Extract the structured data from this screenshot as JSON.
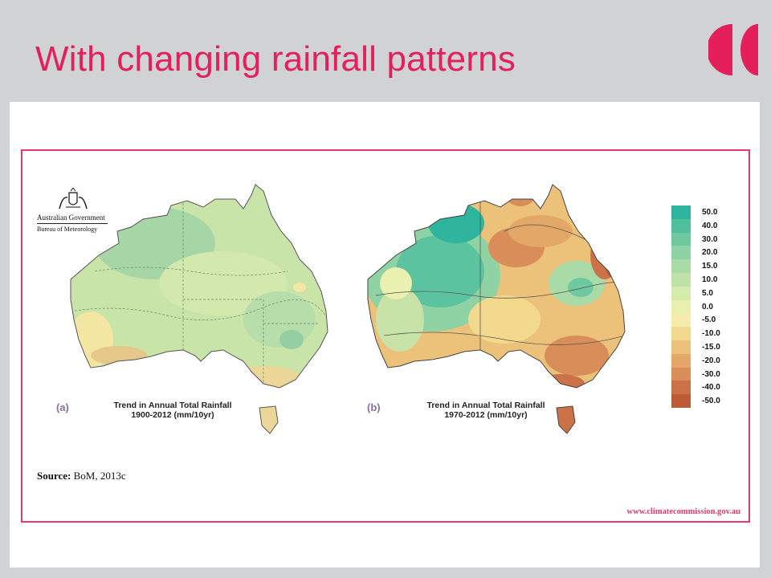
{
  "slide": {
    "title": "With changing rainfall patterns"
  },
  "figure": {
    "government": {
      "line1": "Australian Government",
      "line2": "Bureau of Meteorology"
    },
    "panel_a": {
      "letter": "(a)",
      "caption_line1": "Trend in Annual Total Rainfall",
      "caption_line2": "1900-2012 (mm/10yr)"
    },
    "panel_b": {
      "letter": "(b)",
      "caption_line1": "Trend in Annual Total Rainfall",
      "caption_line2": "1970-2012 (mm/10yr)"
    },
    "legend": {
      "labels": [
        "50.0",
        "40.0",
        "30.0",
        "20.0",
        "15.0",
        "10.0",
        "5.0",
        "0.0",
        "-5.0",
        "-10.0",
        "-15.0",
        "-20.0",
        "-30.0",
        "-40.0",
        "-50.0"
      ],
      "colors": [
        "#2fb49e",
        "#4fbf9e",
        "#6fc9a0",
        "#8fd2a3",
        "#a8dba8",
        "#bfe2a8",
        "#d6ebaa",
        "#eaf0b0",
        "#f5ebaa",
        "#f2d98e",
        "#ecc27a",
        "#e3a868",
        "#d98d58",
        "#cc7248",
        "#bd5a38"
      ]
    },
    "source_label": "Source:",
    "source_text": "BoM, 2013c",
    "url": "www.climatecommission.gov.au",
    "icons": [
      "climate-commission-logo",
      "australian-coat-of-arms-icon"
    ]
  }
}
